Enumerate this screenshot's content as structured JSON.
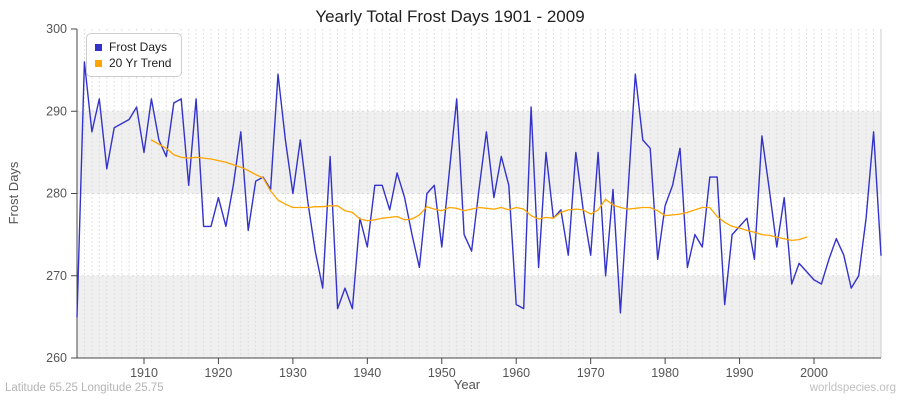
{
  "header": {
    "title": "Yearly Total Frost Days 1901 - 2009"
  },
  "footer": {
    "left": "Latitude 65.25 Longitude 25.75",
    "right": "worldspecies.org"
  },
  "axes": {
    "x_label": "Year",
    "y_label": "Frost Days",
    "y_ticks": [
      260,
      270,
      280,
      290,
      300
    ],
    "x_ticks": [
      1910,
      1920,
      1930,
      1940,
      1950,
      1960,
      1970,
      1980,
      1990,
      2000
    ]
  },
  "legend": {
    "items": [
      {
        "label": "Frost Days",
        "color": "#3333cc",
        "swatch_icon": "blue-square-icon"
      },
      {
        "label": "20 Yr Trend",
        "color": "#ffa500",
        "swatch_icon": "orange-square-icon"
      }
    ]
  },
  "colors": {
    "series_frost_days": "#3333cc",
    "series_trend": "#ffa500",
    "band_gray": "#efefef",
    "gridline": "#d9d9d9",
    "spine_dark": "#474747",
    "spine_light": "#cccccc",
    "tick_text": "#555555"
  },
  "chart_data": {
    "type": "line",
    "title": "Yearly Total Frost Days 1901 - 2009",
    "xlabel": "Year",
    "ylabel": "Frost Days",
    "xlim": [
      1901,
      2009
    ],
    "ylim": [
      260,
      300
    ],
    "grid": "vertical dashed yearly gridlines, alternating horizontal 10-unit bands",
    "legend_position": "top-left",
    "series": [
      {
        "name": "Frost Days",
        "color": "#3333cc",
        "x_start": 1901,
        "values": [
          265,
          296,
          287.5,
          291.5,
          283,
          288,
          288.5,
          289,
          290.5,
          285,
          291.5,
          286.5,
          284.5,
          291,
          291.5,
          281,
          291.5,
          276,
          276,
          279.5,
          276,
          281,
          287.5,
          275.5,
          281.5,
          282,
          280.5,
          294.5,
          286.5,
          280,
          286.5,
          279,
          273,
          268.5,
          284.5,
          266,
          268.5,
          266,
          277,
          273.5,
          281,
          281,
          278,
          282.5,
          279.5,
          275,
          271,
          280,
          281,
          273.5,
          282.5,
          291.5,
          275,
          273,
          280.5,
          287.5,
          279.5,
          284.5,
          281,
          266.5,
          266,
          290.5,
          271,
          285,
          277,
          278,
          272.5,
          285,
          278,
          272.5,
          285,
          270,
          280.5,
          265.5,
          280,
          294.5,
          286.5,
          285.5,
          272,
          278.5,
          281,
          285.5,
          271,
          275,
          273.5,
          282,
          282,
          266.5,
          275,
          276,
          277,
          272,
          287,
          280.5,
          273.5,
          279.5,
          269,
          271.5,
          270.5,
          269.5,
          269,
          272,
          274.5,
          272.5,
          268.5,
          270,
          277,
          287.5,
          272.5
        ]
      },
      {
        "name": "20 Yr Trend",
        "color": "#ffa500",
        "x_start": 1911,
        "values": [
          286.5,
          286,
          285.5,
          284.7,
          284.4,
          284.3,
          284.4,
          284.3,
          284.2,
          284,
          283.8,
          283.5,
          283.2,
          282.8,
          282.3,
          281.9,
          280.3,
          279.2,
          278.7,
          278.3,
          278.3,
          278.3,
          278.4,
          278.4,
          278.5,
          278.5,
          277.9,
          277.7,
          276.9,
          276.7,
          276.8,
          277,
          277.1,
          277.2,
          276.8,
          276.9,
          277.4,
          278.4,
          278.1,
          277.9,
          278.3,
          278.2,
          277.9,
          278.1,
          278.3,
          278.2,
          278.1,
          278.3,
          278,
          278.3,
          278.1,
          277.3,
          276.9,
          277.1,
          277,
          277.7,
          278,
          278.1,
          278,
          277.5,
          278,
          279.3,
          278.6,
          278.3,
          278.1,
          278.2,
          278.3,
          278.3,
          277.9,
          277.3,
          277.4,
          277.5,
          277.7,
          278,
          278.3,
          278.3,
          277.2,
          276.5,
          276,
          275.8,
          275.5,
          275.3,
          275,
          274.9,
          274.7,
          274.5,
          274.3,
          274.4,
          274.7
        ]
      }
    ]
  }
}
